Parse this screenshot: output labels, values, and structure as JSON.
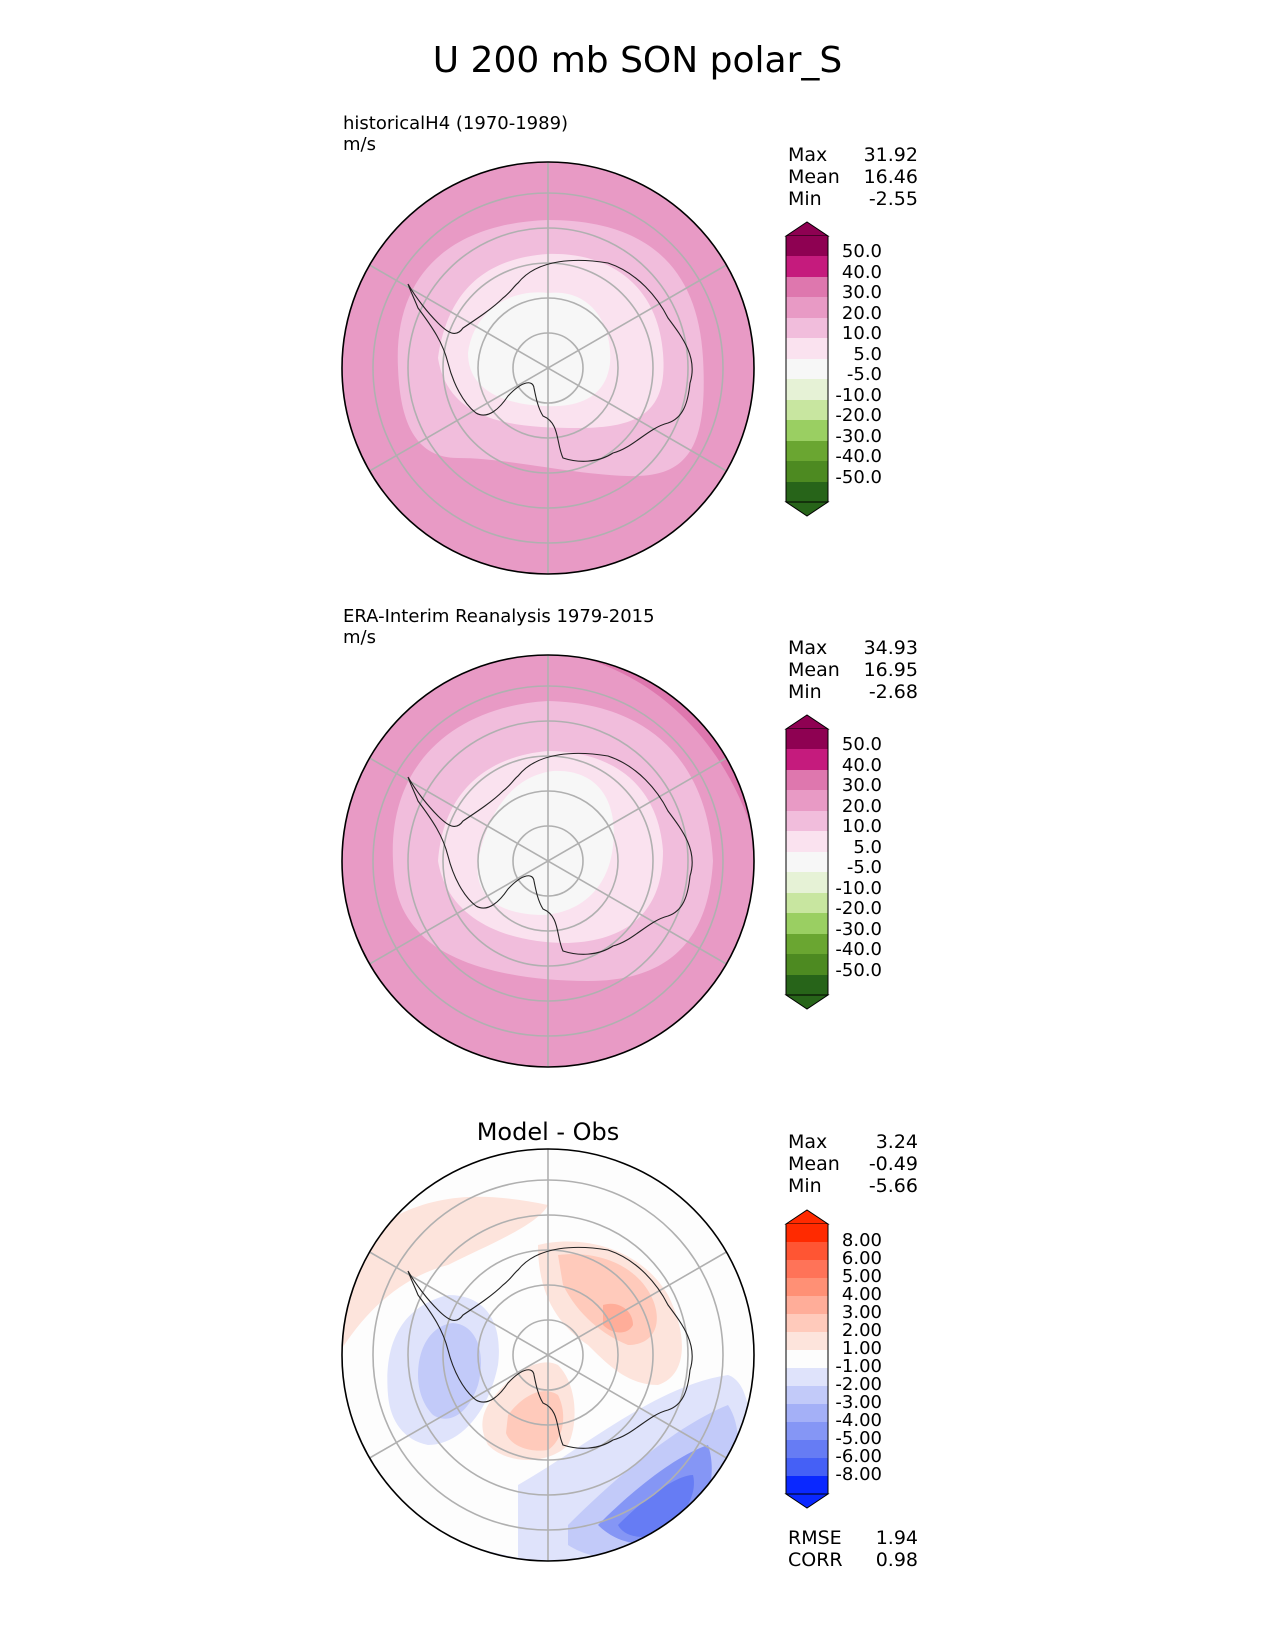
{
  "title": "U 200 mb SON polar_S",
  "panels": [
    {
      "id": "model",
      "title_line1": "historicalH4 (1970-1989)",
      "title_line2": "m/s",
      "stats": [
        {
          "label": "Max",
          "value": "31.92"
        },
        {
          "label": "Mean",
          "value": "16.46"
        },
        {
          "label": "Min",
          "value": "-2.55"
        }
      ]
    },
    {
      "id": "obs",
      "title_line1": "ERA-Interim Reanalysis 1979-2015",
      "title_line2": "m/s",
      "stats": [
        {
          "label": "Max",
          "value": "34.93"
        },
        {
          "label": "Mean",
          "value": "16.95"
        },
        {
          "label": "Min",
          "value": "-2.68"
        }
      ]
    },
    {
      "id": "diff",
      "title_line1": "Model - Obs",
      "stats": [
        {
          "label": "Max",
          "value": "3.24"
        },
        {
          "label": "Mean",
          "value": "-0.49"
        },
        {
          "label": "Min",
          "value": "-5.66"
        }
      ],
      "metrics": [
        {
          "label": "RMSE",
          "value": "1.94"
        },
        {
          "label": "CORR",
          "value": "0.98"
        }
      ]
    }
  ],
  "chart_data": [
    {
      "type": "contour-map",
      "projection": "south-polar-stereographic",
      "title": "historicalH4 (1970-1989)",
      "units": "m/s",
      "colorbar": {
        "levels": [
          "50.0",
          "40.0",
          "30.0",
          "20.0",
          "10.0",
          "5.0",
          "-5.0",
          "-10.0",
          "-20.0",
          "-30.0",
          "-40.0",
          "-50.0"
        ],
        "colors": [
          "#8e0152",
          "#c51b7d",
          "#de77ae",
          "#e89ac5",
          "#f1bddc",
          "#fae2ef",
          "#f7f7f7",
          "#e6f2d6",
          "#c8e6a0",
          "#9acf62",
          "#6aa631",
          "#4d8a21",
          "#276419"
        ]
      },
      "max": 31.92,
      "mean": 16.46,
      "min": -2.55
    },
    {
      "type": "contour-map",
      "projection": "south-polar-stereographic",
      "title": "ERA-Interim Reanalysis 1979-2015",
      "units": "m/s",
      "colorbar": {
        "levels": [
          "50.0",
          "40.0",
          "30.0",
          "20.0",
          "10.0",
          "5.0",
          "-5.0",
          "-10.0",
          "-20.0",
          "-30.0",
          "-40.0",
          "-50.0"
        ],
        "colors": [
          "#8e0152",
          "#c51b7d",
          "#de77ae",
          "#e89ac5",
          "#f1bddc",
          "#fae2ef",
          "#f7f7f7",
          "#e6f2d6",
          "#c8e6a0",
          "#9acf62",
          "#6aa631",
          "#4d8a21",
          "#276419"
        ]
      },
      "max": 34.93,
      "mean": 16.95,
      "min": -2.68
    },
    {
      "type": "contour-map",
      "projection": "south-polar-stereographic",
      "title": "Model - Obs",
      "units": "m/s",
      "colorbar": {
        "levels": [
          "8.00",
          "6.00",
          "5.00",
          "4.00",
          "3.00",
          "2.00",
          "1.00",
          "-1.00",
          "-2.00",
          "-3.00",
          "-4.00",
          "-5.00",
          "-6.00",
          "-8.00"
        ],
        "colors": [
          "#ff2a00",
          "#ff5533",
          "#ff7358",
          "#ff9075",
          "#ffad99",
          "#ffcabb",
          "#fde4dc",
          "#fdfdfd",
          "#dfe3fb",
          "#c2caf9",
          "#a4b0f7",
          "#8596f5",
          "#667cf4",
          "#4560f6",
          "#0a28ff"
        ]
      },
      "max": 3.24,
      "mean": -0.49,
      "min": -5.66,
      "rmse": 1.94,
      "corr": 0.98
    }
  ]
}
